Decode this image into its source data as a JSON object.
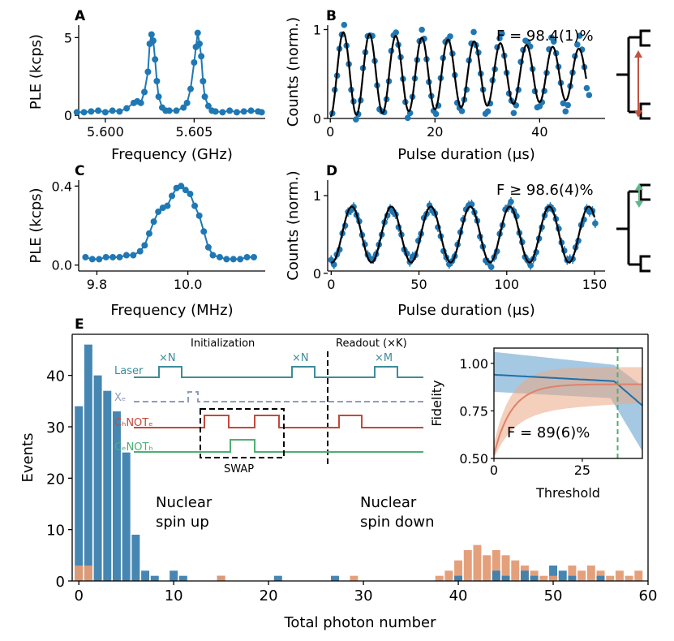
{
  "colors": {
    "blue": "#1f77b4",
    "dark_blue": "#1b5f8f",
    "orange": "#e0926a",
    "bar_blue": "#3c7fae",
    "bar_orange": "#e39a74",
    "teal": "#3d8c99",
    "grey_blue": "#8f9bbf",
    "red": "#c24a3a",
    "green": "#4fae72",
    "arrow_red": "#c0503f",
    "arrow_green": "#5bb98a"
  },
  "panels": {
    "A": {
      "letter": "A"
    },
    "B": {
      "letter": "B",
      "fidelity": "F = 98.4(1)%"
    },
    "C": {
      "letter": "C"
    },
    "D": {
      "letter": "D",
      "fidelity": "F ≥ 98.6(4)%"
    },
    "E": {
      "letter": "E"
    }
  },
  "sequence": {
    "initialization": "Initialization",
    "readout": "Readout (×K)",
    "laser": "Laser",
    "xe": "Xₑ",
    "chnote": "CₕNOTₑ",
    "cenoth": "CₑNOTₕ",
    "swap": "SWAP",
    "xN": "×N",
    "xM": "×M"
  },
  "legend": {
    "up": [
      "Nuclear",
      "spin up"
    ],
    "down": [
      "Nuclear",
      "spin down"
    ]
  },
  "inset": {
    "fidelity": "F = 89(6)%"
  },
  "chart_data": [
    {
      "panel": "A",
      "type": "line",
      "xlabel": "Frequency (GHz)",
      "ylabel": "PLE (kcps)",
      "xlim": [
        5.5985,
        5.609
      ],
      "ylim": [
        -0.2,
        5.8
      ],
      "xticks": [
        "5.600",
        "5.605"
      ],
      "yticks": [
        "0",
        "5"
      ],
      "x": [
        5.5984,
        5.5988,
        5.5992,
        5.5996,
        5.6,
        5.6004,
        5.6008,
        5.6012,
        5.6016,
        5.6018,
        5.602,
        5.6022,
        5.6024,
        5.6025,
        5.6026,
        5.6027,
        5.6028,
        5.6029,
        5.603,
        5.6032,
        5.6034,
        5.6036,
        5.604,
        5.6044,
        5.6046,
        5.6048,
        5.605,
        5.6051,
        5.6052,
        5.6053,
        5.6054,
        5.6055,
        5.6056,
        5.6058,
        5.606,
        5.6062,
        5.6066,
        5.607,
        5.6074,
        5.6078,
        5.6082,
        5.6086,
        5.6088
      ],
      "y": [
        0.2,
        0.2,
        0.25,
        0.3,
        0.2,
        0.3,
        0.25,
        0.45,
        0.8,
        0.9,
        0.8,
        1.5,
        2.8,
        4.6,
        5.2,
        4.8,
        3.6,
        2.2,
        1.2,
        0.5,
        0.3,
        0.3,
        0.3,
        0.5,
        0.8,
        1.7,
        3.4,
        4.4,
        5.3,
        4.6,
        3.8,
        2.2,
        1.2,
        0.6,
        0.3,
        0.25,
        0.2,
        0.3,
        0.2,
        0.25,
        0.3,
        0.25,
        0.2
      ]
    },
    {
      "panel": "B",
      "type": "scatter",
      "xlabel": "Pulse duration (μs)",
      "ylabel": "Counts (norm.)",
      "xlim": [
        -0.5,
        52.5
      ],
      "ylim": [
        0,
        1.05
      ],
      "xticks": [
        "0",
        "20",
        "40"
      ],
      "yticks": [
        "0",
        "1"
      ],
      "fit": {
        "period": 5.0,
        "decay_to": 0.35,
        "duration": 49
      }
    },
    {
      "panel": "C",
      "type": "line",
      "xlabel": "Frequency (MHz)",
      "ylabel": "PLE (kcps)",
      "xlim": [
        9.76,
        10.17
      ],
      "ylim": [
        -0.03,
        0.43
      ],
      "xticks": [
        "9.8",
        "10.0"
      ],
      "yticks": [
        "0.0",
        "0.4"
      ],
      "x": [
        9.775,
        9.79,
        9.805,
        9.82,
        9.835,
        9.85,
        9.865,
        9.88,
        9.895,
        9.905,
        9.915,
        9.925,
        9.935,
        9.945,
        9.955,
        9.965,
        9.975,
        9.985,
        9.995,
        10.005,
        10.015,
        10.025,
        10.035,
        10.045,
        10.055,
        10.07,
        10.085,
        10.1,
        10.115,
        10.13,
        10.145
      ],
      "y": [
        0.04,
        0.03,
        0.03,
        0.04,
        0.04,
        0.04,
        0.05,
        0.05,
        0.07,
        0.1,
        0.16,
        0.22,
        0.27,
        0.29,
        0.3,
        0.35,
        0.39,
        0.4,
        0.38,
        0.36,
        0.3,
        0.25,
        0.17,
        0.09,
        0.05,
        0.04,
        0.03,
        0.03,
        0.03,
        0.04,
        0.04
      ]
    },
    {
      "panel": "D",
      "type": "scatter",
      "xlabel": "Pulse duration (μs)",
      "ylabel": "Counts (norm.)",
      "xlim": [
        -2,
        156
      ],
      "ylim": [
        0.03,
        1.2
      ],
      "xticks": [
        "0",
        "50",
        "100",
        "150"
      ],
      "yticks": [
        "0",
        "1"
      ],
      "fit": {
        "period": 22.5,
        "duration": 150
      }
    },
    {
      "panel": "E",
      "type": "bar",
      "xlabel": "Total photon number",
      "ylabel": "Events",
      "xlim": [
        -0.7,
        60
      ],
      "ylim": [
        0,
        48
      ],
      "xticks": [
        "0",
        "10",
        "20",
        "30",
        "40",
        "50",
        "60"
      ],
      "yticks": [
        "0",
        "10",
        "20",
        "30",
        "40"
      ],
      "series": [
        {
          "name": "Nuclear spin up",
          "values": [
            34,
            46,
            40,
            37,
            33,
            25,
            9,
            2,
            1,
            0,
            2,
            1,
            0,
            0,
            0,
            1,
            0,
            0,
            0,
            0,
            0,
            1,
            0,
            0,
            0,
            0,
            0,
            1,
            0,
            0,
            0,
            0,
            0,
            0,
            0,
            0,
            0,
            0,
            0,
            0,
            1,
            0,
            0,
            0,
            2,
            1,
            0,
            2,
            1,
            0,
            3,
            2,
            1,
            0,
            0,
            1,
            0,
            0,
            0,
            0
          ]
        },
        {
          "name": "Nuclear spin down",
          "values": [
            3,
            3,
            0,
            0,
            0,
            0,
            0,
            0,
            0,
            0,
            0,
            0,
            0,
            0,
            0,
            1,
            0,
            0,
            0,
            0,
            0,
            0,
            0,
            0,
            0,
            0,
            0,
            0,
            0,
            1,
            0,
            0,
            0,
            0,
            0,
            0,
            0,
            0,
            1,
            2,
            4,
            6,
            7,
            5,
            6,
            5,
            4,
            3,
            2,
            1,
            1,
            0,
            3,
            2,
            3,
            2,
            1,
            2,
            1,
            2
          ]
        }
      ]
    },
    {
      "panel": "E-inset",
      "type": "line",
      "xlabel": "Threshold",
      "ylabel": "Fidelity",
      "xlim": [
        0,
        42
      ],
      "ylim": [
        0.5,
        1.08
      ],
      "xticks": [
        "0",
        "25"
      ],
      "yticks": [
        "0.50",
        "0.75",
        "1.00"
      ],
      "threshold_line": 35
    }
  ]
}
